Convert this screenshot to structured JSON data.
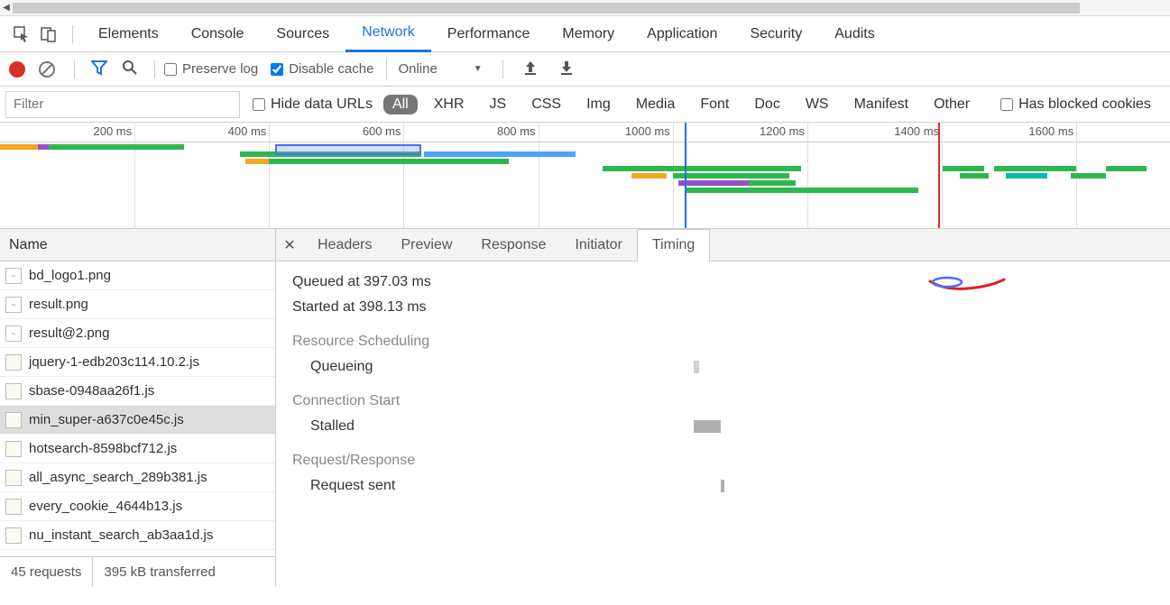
{
  "colors": {
    "accent": "#1a73e8",
    "record": "#d93025",
    "green": "#2db84d",
    "orange": "#f5a623",
    "purple": "#9b4dca",
    "teal": "#00bfa5",
    "grey_bar": "#b0b0b0"
  },
  "top_tabs": {
    "items": [
      "Elements",
      "Console",
      "Sources",
      "Network",
      "Performance",
      "Memory",
      "Application",
      "Security",
      "Audits"
    ],
    "active_index": 3
  },
  "toolbar": {
    "preserve_log": "Preserve log",
    "disable_cache": "Disable cache",
    "disable_cache_checked": true,
    "throttling": "Online"
  },
  "filter": {
    "placeholder": "Filter",
    "hide_data_urls": "Hide data URLs",
    "types": [
      "All",
      "XHR",
      "JS",
      "CSS",
      "Img",
      "Media",
      "Font",
      "Doc",
      "WS",
      "Manifest",
      "Other"
    ],
    "has_blocked": "Has blocked cookies"
  },
  "overview": {
    "ticks": [
      {
        "label": "200 ms",
        "pct": 11.5
      },
      {
        "label": "400 ms",
        "pct": 23.0
      },
      {
        "label": "600 ms",
        "pct": 34.5
      },
      {
        "label": "800 ms",
        "pct": 46.0
      },
      {
        "label": "1000 ms",
        "pct": 57.5
      },
      {
        "label": "1200 ms",
        "pct": 69.0
      },
      {
        "label": "1400 ms",
        "pct": 80.5
      },
      {
        "label": "1600 ms",
        "pct": 92.0
      }
    ],
    "blue_line_pct": 58.5,
    "red_line_pct": 80.2,
    "selection": {
      "left_pct": 23.5,
      "width_pct": 12.5
    },
    "rows": [
      [
        {
          "left": 0,
          "w": 3.2,
          "c": "#f5a623"
        },
        {
          "left": 3.2,
          "w": 1.0,
          "c": "#9b4dca"
        },
        {
          "left": 4.2,
          "w": 11.5,
          "c": "#2db84d"
        }
      ],
      [
        {
          "left": 20.5,
          "w": 15.5,
          "c": "#2db84d"
        },
        {
          "left": 36.2,
          "w": 13.0,
          "c": "#4aa3ff"
        }
      ],
      [
        {
          "left": 21.0,
          "w": 2.0,
          "c": "#f5a623"
        },
        {
          "left": 23.0,
          "w": 20.5,
          "c": "#2db84d"
        }
      ],
      [
        {
          "left": 51.5,
          "w": 17.0,
          "c": "#2db84d"
        },
        {
          "left": 80.6,
          "w": 3.5,
          "c": "#2db84d"
        },
        {
          "left": 85.0,
          "w": 7.0,
          "c": "#2db84d"
        },
        {
          "left": 94.5,
          "w": 3.5,
          "c": "#2db84d"
        }
      ],
      [
        {
          "left": 54.0,
          "w": 3.0,
          "c": "#f5a623"
        },
        {
          "left": 57.5,
          "w": 10.0,
          "c": "#2db84d"
        },
        {
          "left": 82.0,
          "w": 2.5,
          "c": "#2db84d"
        },
        {
          "left": 86.0,
          "w": 3.5,
          "c": "#00bfa5"
        },
        {
          "left": 91.5,
          "w": 3.0,
          "c": "#2db84d"
        }
      ],
      [
        {
          "left": 58.0,
          "w": 6.0,
          "c": "#9b4dca"
        },
        {
          "left": 64.0,
          "w": 4.0,
          "c": "#2db84d"
        }
      ],
      [
        {
          "left": 58.5,
          "w": 20.0,
          "c": "#2db84d"
        }
      ]
    ]
  },
  "name_panel": {
    "header": "Name",
    "files": [
      {
        "name": "bd_logo1.png",
        "type": "img"
      },
      {
        "name": "result.png",
        "type": "img"
      },
      {
        "name": "result@2.png",
        "type": "img"
      },
      {
        "name": "jquery-1-edb203c114.10.2.js",
        "type": "js"
      },
      {
        "name": "sbase-0948aa26f1.js",
        "type": "js"
      },
      {
        "name": "min_super-a637c0e45c.js",
        "type": "js",
        "selected": true
      },
      {
        "name": "hotsearch-8598bcf712.js",
        "type": "js"
      },
      {
        "name": "all_async_search_289b381.js",
        "type": "js"
      },
      {
        "name": "every_cookie_4644b13.js",
        "type": "js"
      },
      {
        "name": "nu_instant_search_ab3aa1d.js",
        "type": "js"
      }
    ],
    "status": {
      "requests": "45 requests",
      "transferred": "395 kB transferred"
    }
  },
  "detail": {
    "tabs": [
      "Headers",
      "Preview",
      "Response",
      "Initiator",
      "Timing"
    ],
    "active_index": 4,
    "timing": {
      "queued": "Queued at 397.03 ms",
      "started": "Started at 398.13 ms",
      "sections": [
        {
          "title": "Resource Scheduling",
          "rows": [
            {
              "label": "Queueing",
              "left_pct": 47,
              "w_pct": 1.2,
              "color": "#d0d0d0"
            }
          ]
        },
        {
          "title": "Connection Start",
          "rows": [
            {
              "label": "Stalled",
              "left_pct": 47,
              "w_pct": 6,
              "color": "#b0b0b0"
            }
          ]
        },
        {
          "title": "Request/Response",
          "rows": [
            {
              "label": "Request sent",
              "left_pct": 53,
              "w_pct": 0.8,
              "color": "#b0b0b0"
            }
          ]
        }
      ]
    }
  }
}
